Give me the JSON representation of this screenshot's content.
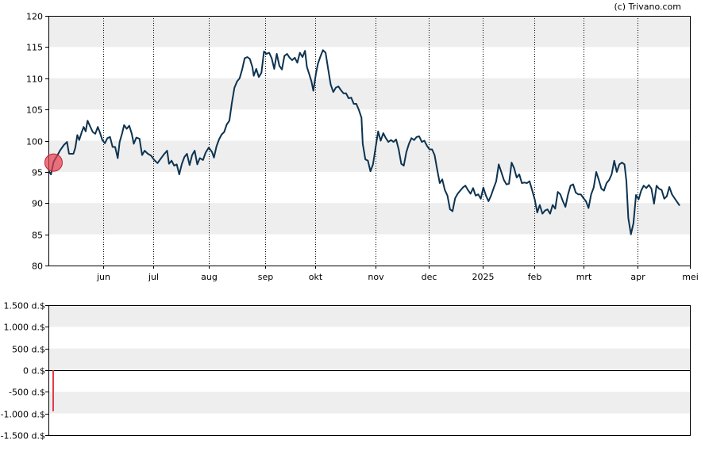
{
  "copyright": "(c) Trivano.com",
  "chart_data": [
    {
      "type": "line",
      "name": "price",
      "ylim": [
        80,
        120
      ],
      "yticks": [
        80,
        85,
        90,
        95,
        100,
        105,
        110,
        115,
        120
      ],
      "xticks": [
        {
          "label": "jun",
          "x": 0.085
        },
        {
          "label": "jul",
          "x": 0.163
        },
        {
          "label": "aug",
          "x": 0.25
        },
        {
          "label": "sep",
          "x": 0.338
        },
        {
          "label": "okt",
          "x": 0.416
        },
        {
          "label": "nov",
          "x": 0.51
        },
        {
          "label": "dec",
          "x": 0.593
        },
        {
          "label": "2025",
          "x": 0.677
        },
        {
          "label": "feb",
          "x": 0.757
        },
        {
          "label": "mrt",
          "x": 0.834
        },
        {
          "label": "apr",
          "x": 0.918
        },
        {
          "label": "mei",
          "x": 1.0
        }
      ],
      "grid": "horizontal bands + dotted vertical month lines",
      "line_color": "#0d3350",
      "marker": {
        "x": 0.008,
        "y": 96.5,
        "color": "#e23c4c"
      },
      "series": [
        {
          "values": [
            [
              0.0,
              95.2
            ],
            [
              0.004,
              94.6
            ],
            [
              0.008,
              96.6
            ],
            [
              0.013,
              97.5
            ],
            [
              0.018,
              98.4
            ],
            [
              0.024,
              99.3
            ],
            [
              0.029,
              99.8
            ],
            [
              0.032,
              97.9
            ],
            [
              0.035,
              97.9
            ],
            [
              0.039,
              97.9
            ],
            [
              0.042,
              98.9
            ],
            [
              0.045,
              100.9
            ],
            [
              0.048,
              100.1
            ],
            [
              0.052,
              101.4
            ],
            [
              0.055,
              102.2
            ],
            [
              0.058,
              101.5
            ],
            [
              0.061,
              103.2
            ],
            [
              0.065,
              102.3
            ],
            [
              0.069,
              101.4
            ],
            [
              0.073,
              101.1
            ],
            [
              0.077,
              102.2
            ],
            [
              0.08,
              101.4
            ],
            [
              0.084,
              100.1
            ],
            [
              0.088,
              99.6
            ],
            [
              0.092,
              100.4
            ],
            [
              0.096,
              100.6
            ],
            [
              0.1,
              99.0
            ],
            [
              0.104,
              99.0
            ],
            [
              0.108,
              97.2
            ],
            [
              0.111,
              99.8
            ],
            [
              0.115,
              101.2
            ],
            [
              0.118,
              102.5
            ],
            [
              0.122,
              101.9
            ],
            [
              0.126,
              102.4
            ],
            [
              0.13,
              101.1
            ],
            [
              0.133,
              99.5
            ],
            [
              0.137,
              100.5
            ],
            [
              0.142,
              100.3
            ],
            [
              0.146,
              97.7
            ],
            [
              0.15,
              98.4
            ],
            [
              0.155,
              97.9
            ],
            [
              0.16,
              97.6
            ],
            [
              0.165,
              96.9
            ],
            [
              0.17,
              96.4
            ],
            [
              0.175,
              97.1
            ],
            [
              0.18,
              97.8
            ],
            [
              0.185,
              98.4
            ],
            [
              0.188,
              96.3
            ],
            [
              0.192,
              96.8
            ],
            [
              0.196,
              96.0
            ],
            [
              0.2,
              96.2
            ],
            [
              0.204,
              94.6
            ],
            [
              0.208,
              96.3
            ],
            [
              0.212,
              97.4
            ],
            [
              0.216,
              97.9
            ],
            [
              0.22,
              96.1
            ],
            [
              0.224,
              97.7
            ],
            [
              0.228,
              98.4
            ],
            [
              0.232,
              96.2
            ],
            [
              0.236,
              97.2
            ],
            [
              0.241,
              96.9
            ],
            [
              0.245,
              98.1
            ],
            [
              0.25,
              98.9
            ],
            [
              0.255,
              98.2
            ],
            [
              0.258,
              97.3
            ],
            [
              0.262,
              99.1
            ],
            [
              0.266,
              100.2
            ],
            [
              0.27,
              101.0
            ],
            [
              0.274,
              101.4
            ],
            [
              0.278,
              102.6
            ],
            [
              0.282,
              103.2
            ],
            [
              0.286,
              106.1
            ],
            [
              0.29,
              108.5
            ],
            [
              0.294,
              109.5
            ],
            [
              0.298,
              110.0
            ],
            [
              0.302,
              111.4
            ],
            [
              0.306,
              113.2
            ],
            [
              0.31,
              113.4
            ],
            [
              0.314,
              113.1
            ],
            [
              0.318,
              111.8
            ],
            [
              0.32,
              110.4
            ],
            [
              0.324,
              111.5
            ],
            [
              0.328,
              110.2
            ],
            [
              0.332,
              110.9
            ],
            [
              0.336,
              114.3
            ],
            [
              0.34,
              113.9
            ],
            [
              0.344,
              114.1
            ],
            [
              0.348,
              113.2
            ],
            [
              0.352,
              111.5
            ],
            [
              0.356,
              113.9
            ],
            [
              0.36,
              112.0
            ],
            [
              0.364,
              111.4
            ],
            [
              0.368,
              113.6
            ],
            [
              0.372,
              113.9
            ],
            [
              0.376,
              113.3
            ],
            [
              0.38,
              112.9
            ],
            [
              0.384,
              113.3
            ],
            [
              0.388,
              112.5
            ],
            [
              0.392,
              114.1
            ],
            [
              0.396,
              113.4
            ],
            [
              0.4,
              114.4
            ],
            [
              0.403,
              111.8
            ],
            [
              0.407,
              110.5
            ],
            [
              0.41,
              109.5
            ],
            [
              0.413,
              108.0
            ],
            [
              0.417,
              110.7
            ],
            [
              0.42,
              112.3
            ],
            [
              0.424,
              113.5
            ],
            [
              0.428,
              114.5
            ],
            [
              0.432,
              114.1
            ],
            [
              0.436,
              111.5
            ],
            [
              0.44,
              109.0
            ],
            [
              0.444,
              107.8
            ],
            [
              0.448,
              108.5
            ],
            [
              0.452,
              108.7
            ],
            [
              0.456,
              108.1
            ],
            [
              0.46,
              107.6
            ],
            [
              0.464,
              107.6
            ],
            [
              0.468,
              106.8
            ],
            [
              0.472,
              106.9
            ],
            [
              0.476,
              105.9
            ],
            [
              0.48,
              105.9
            ],
            [
              0.484,
              104.9
            ],
            [
              0.488,
              103.7
            ],
            [
              0.49,
              99.5
            ],
            [
              0.494,
              97.0
            ],
            [
              0.498,
              96.8
            ],
            [
              0.502,
              95.1
            ],
            [
              0.506,
              96.2
            ],
            [
              0.51,
              98.9
            ],
            [
              0.514,
              101.5
            ],
            [
              0.518,
              100.0
            ],
            [
              0.522,
              101.2
            ],
            [
              0.526,
              100.4
            ],
            [
              0.53,
              99.8
            ],
            [
              0.534,
              100.1
            ],
            [
              0.538,
              99.8
            ],
            [
              0.542,
              100.2
            ],
            [
              0.546,
              98.6
            ],
            [
              0.55,
              96.3
            ],
            [
              0.554,
              96.0
            ],
            [
              0.558,
              98.2
            ],
            [
              0.562,
              99.5
            ],
            [
              0.566,
              100.4
            ],
            [
              0.57,
              100.1
            ],
            [
              0.574,
              100.6
            ],
            [
              0.578,
              100.7
            ],
            [
              0.582,
              99.8
            ],
            [
              0.586,
              100.0
            ],
            [
              0.59,
              99.2
            ],
            [
              0.594,
              98.6
            ],
            [
              0.598,
              98.6
            ],
            [
              0.602,
              97.7
            ],
            [
              0.606,
              95.4
            ],
            [
              0.61,
              93.2
            ],
            [
              0.614,
              93.8
            ],
            [
              0.618,
              92.1
            ],
            [
              0.622,
              91.2
            ],
            [
              0.626,
              89.0
            ],
            [
              0.63,
              88.7
            ],
            [
              0.634,
              90.8
            ],
            [
              0.638,
              91.5
            ],
            [
              0.642,
              92.0
            ],
            [
              0.646,
              92.5
            ],
            [
              0.65,
              92.8
            ],
            [
              0.654,
              92.1
            ],
            [
              0.658,
              91.5
            ],
            [
              0.662,
              92.4
            ],
            [
              0.666,
              91.2
            ],
            [
              0.67,
              91.4
            ],
            [
              0.674,
              90.7
            ],
            [
              0.678,
              92.5
            ],
            [
              0.682,
              91.2
            ],
            [
              0.686,
              90.3
            ],
            [
              0.69,
              91.2
            ],
            [
              0.694,
              92.4
            ],
            [
              0.698,
              93.5
            ],
            [
              0.702,
              96.2
            ],
            [
              0.706,
              95.0
            ],
            [
              0.71,
              93.7
            ],
            [
              0.714,
              93.0
            ],
            [
              0.718,
              93.1
            ],
            [
              0.722,
              96.5
            ],
            [
              0.726,
              95.6
            ],
            [
              0.73,
              94.1
            ],
            [
              0.734,
              94.6
            ],
            [
              0.738,
              93.2
            ],
            [
              0.742,
              93.3
            ],
            [
              0.746,
              93.2
            ],
            [
              0.75,
              93.5
            ],
            [
              0.754,
              92.1
            ],
            [
              0.758,
              90.6
            ],
            [
              0.762,
              88.5
            ],
            [
              0.766,
              89.7
            ],
            [
              0.77,
              88.3
            ],
            [
              0.774,
              88.8
            ],
            [
              0.778,
              89.0
            ],
            [
              0.782,
              88.3
            ],
            [
              0.786,
              89.7
            ],
            [
              0.79,
              89.1
            ],
            [
              0.794,
              91.8
            ],
            [
              0.798,
              91.4
            ],
            [
              0.802,
              90.3
            ],
            [
              0.806,
              89.4
            ],
            [
              0.81,
              91.4
            ],
            [
              0.814,
              92.8
            ],
            [
              0.818,
              93.0
            ],
            [
              0.822,
              91.7
            ],
            [
              0.826,
              91.4
            ],
            [
              0.83,
              91.4
            ],
            [
              0.834,
              90.8
            ],
            [
              0.838,
              90.3
            ],
            [
              0.842,
              89.2
            ],
            [
              0.846,
              91.4
            ],
            [
              0.85,
              92.5
            ],
            [
              0.854,
              95.0
            ],
            [
              0.858,
              93.7
            ],
            [
              0.862,
              92.3
            ],
            [
              0.866,
              92.0
            ],
            [
              0.87,
              93.2
            ],
            [
              0.874,
              93.7
            ],
            [
              0.878,
              94.6
            ],
            [
              0.882,
              96.8
            ],
            [
              0.886,
              95.0
            ],
            [
              0.89,
              96.2
            ],
            [
              0.894,
              96.5
            ],
            [
              0.898,
              96.2
            ],
            [
              0.901,
              93.5
            ],
            [
              0.904,
              87.6
            ],
            [
              0.908,
              85.0
            ],
            [
              0.912,
              86.8
            ],
            [
              0.916,
              91.3
            ],
            [
              0.92,
              90.6
            ],
            [
              0.924,
              92.0
            ],
            [
              0.928,
              92.8
            ],
            [
              0.932,
              92.4
            ],
            [
              0.936,
              92.9
            ],
            [
              0.94,
              92.3
            ],
            [
              0.944,
              89.9
            ],
            [
              0.948,
              92.8
            ],
            [
              0.952,
              92.3
            ],
            [
              0.956,
              92.1
            ],
            [
              0.96,
              90.7
            ],
            [
              0.964,
              91.1
            ],
            [
              0.968,
              92.6
            ],
            [
              0.972,
              91.4
            ],
            [
              0.976,
              90.8
            ],
            [
              0.98,
              90.2
            ],
            [
              0.984,
              89.6
            ]
          ]
        }
      ]
    },
    {
      "type": "bar",
      "name": "volume",
      "ylim": [
        -1500,
        1500
      ],
      "yticks": [
        {
          "value": 1500,
          "label": "1.500 d.$"
        },
        {
          "value": 1000,
          "label": "1.000 d.$"
        },
        {
          "value": 500,
          "label": "500 d.$"
        },
        {
          "value": 0,
          "label": "0 d.$"
        },
        {
          "value": -500,
          "label": "-500 d.$"
        },
        {
          "value": -1000,
          "label": "-1.000 d.$"
        },
        {
          "value": -1500,
          "label": "-1.500 d.$"
        }
      ],
      "bar_color": "#e23c4c",
      "bars": [
        {
          "x": 0.008,
          "value": -950
        }
      ]
    }
  ]
}
